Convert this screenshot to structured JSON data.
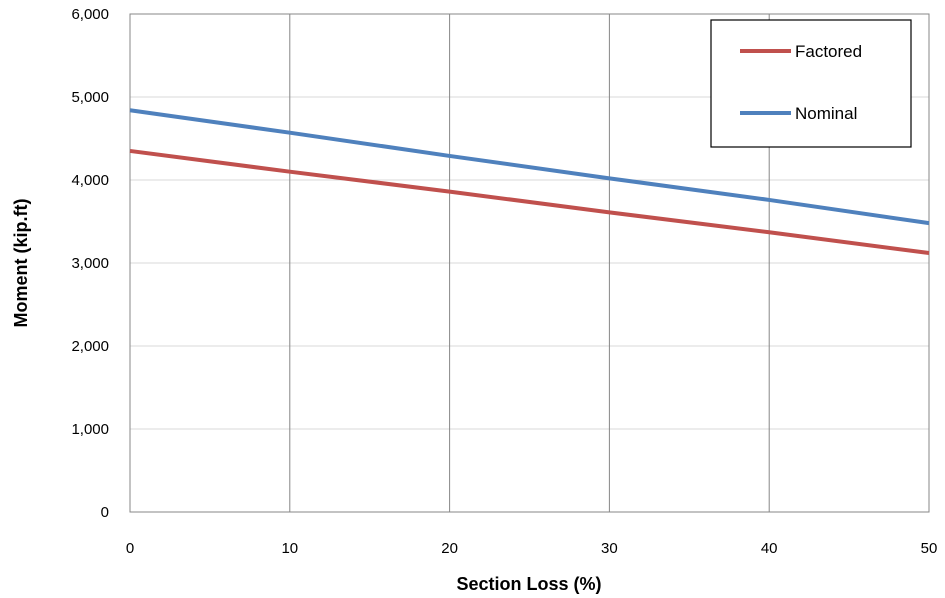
{
  "chart_data": {
    "type": "line",
    "xlabel": "Section Loss (%)",
    "ylabel": "Moment (kip.ft)",
    "xlim": [
      0,
      50
    ],
    "ylim": [
      0,
      6000
    ],
    "x_ticks": [
      0,
      10,
      20,
      30,
      40,
      50
    ],
    "y_ticks": [
      0,
      1000,
      2000,
      3000,
      4000,
      5000,
      6000
    ],
    "x_tick_labels": [
      "0",
      "10",
      "20",
      "30",
      "40",
      "50"
    ],
    "y_tick_labels": [
      "0",
      "1,000",
      "2,000",
      "3,000",
      "4,000",
      "5,000",
      "6,000"
    ],
    "grid": {
      "vertical": true,
      "horizontal": true
    },
    "legend": {
      "position": "top-right"
    },
    "series": [
      {
        "name": "Factored",
        "color": "#c0504d",
        "x": [
          0,
          10,
          20,
          30,
          40,
          50
        ],
        "values": [
          4350,
          4100,
          3860,
          3610,
          3370,
          3120
        ]
      },
      {
        "name": "Nominal",
        "color": "#4f81bd",
        "x": [
          0,
          10,
          20,
          30,
          40,
          50
        ],
        "values": [
          4840,
          4570,
          4290,
          4020,
          3760,
          3480
        ]
      }
    ]
  }
}
